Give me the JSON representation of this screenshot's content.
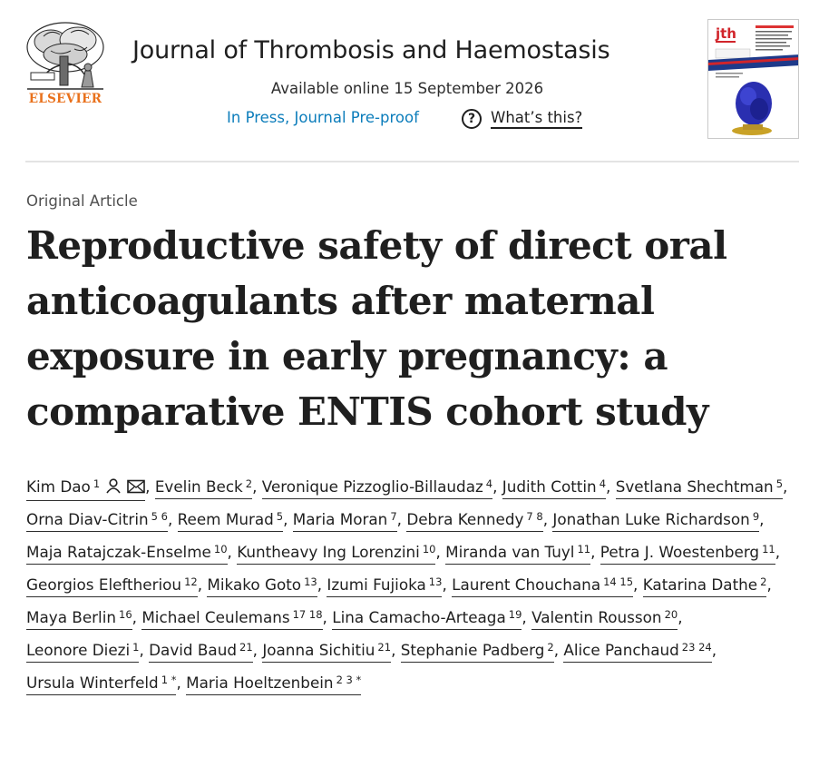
{
  "header": {
    "publisher_name": "ELSEVIER",
    "journal_title": "Journal of Thrombosis and Haemostasis",
    "available_online": "Available online 15 September 2026",
    "in_press_link": "In Press, Journal Pre-proof",
    "help_icon_glyph": "?",
    "whats_this_link": "What’s this?",
    "cover_logo_text": "jth"
  },
  "article": {
    "type": "Original Article",
    "title": "Reproductive safety of direct oral anticoagulants after maternal exposure in early pregnancy: a comparative ENTIS cohort study"
  },
  "authors": [
    {
      "name": "Kim Dao",
      "aff": "1"
    },
    {
      "name": "Evelin Beck",
      "aff": "2"
    },
    {
      "name": "Veronique Pizzoglio-Billaudaz",
      "aff": "4"
    },
    {
      "name": "Judith Cottin",
      "aff": "4"
    },
    {
      "name": "Svetlana Shechtman",
      "aff": "5"
    },
    {
      "name": "Orna Diav-Citrin",
      "aff": "5 6"
    },
    {
      "name": "Reem Murad",
      "aff": "5"
    },
    {
      "name": "Maria Moran",
      "aff": "7"
    },
    {
      "name": "Debra Kennedy",
      "aff": "7 8"
    },
    {
      "name": "Jonathan Luke Richardson",
      "aff": "9"
    },
    {
      "name": "Maja Ratajczak-Enselme",
      "aff": "10"
    },
    {
      "name": "Kuntheavy Ing Lorenzini",
      "aff": "10"
    },
    {
      "name": "Miranda van Tuyl",
      "aff": "11"
    },
    {
      "name": "Petra J. Woestenberg",
      "aff": "11"
    },
    {
      "name": "Georgios Eleftheriou",
      "aff": "12"
    },
    {
      "name": "Mikako Goto",
      "aff": "13"
    },
    {
      "name": "Izumi Fujioka",
      "aff": "13"
    },
    {
      "name": "Laurent Chouchana",
      "aff": "14 15"
    },
    {
      "name": "Katarina Dathe",
      "aff": "2"
    },
    {
      "name": "Maya Berlin",
      "aff": "16"
    },
    {
      "name": "Michael Ceulemans",
      "aff": "17 18"
    },
    {
      "name": "Lina Camacho-Arteaga",
      "aff": "19"
    },
    {
      "name": "Valentin Rousson",
      "aff": "20"
    },
    {
      "name": "Leonore Diezi",
      "aff": "1"
    },
    {
      "name": "David Baud",
      "aff": "21"
    },
    {
      "name": "Joanna Sichitiu",
      "aff": "21"
    },
    {
      "name": "Stephanie Padberg",
      "aff": "2"
    },
    {
      "name": "Alice Panchaud",
      "aff": "23 24"
    },
    {
      "name": "Ursula Winterfeld",
      "aff": "1 *"
    },
    {
      "name": "Maria Hoeltzenbein",
      "aff": "2 3 *"
    }
  ],
  "icons": {
    "author_profile": "person-icon",
    "author_email": "envelope-icon"
  },
  "colors": {
    "elsevier_orange": "#e9711c",
    "link_blue": "#0c7dbb",
    "text": "#1f1f1f"
  }
}
